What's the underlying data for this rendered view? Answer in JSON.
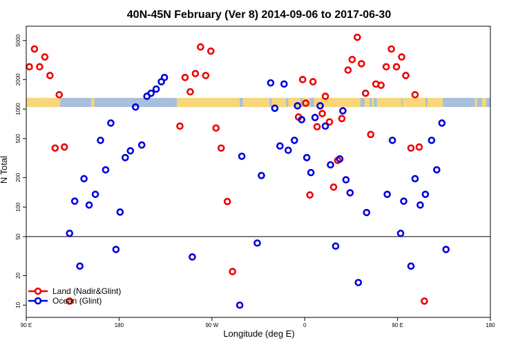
{
  "chart_data": {
    "type": "scatter",
    "title": "40N-45N February (Ver 8)   2014-09-06 to 2017-06-30",
    "xlabel": "Longitude (deg E)",
    "ylabel": "N Total",
    "x_ticks": [
      "90 E",
      "180",
      "90 W",
      "0",
      "90 E",
      "180"
    ],
    "x_tick_values": [
      90,
      180,
      270,
      360,
      450,
      540
    ],
    "xlim": [
      90,
      540
    ],
    "y_scale": "log",
    "ylim": [
      7.5,
      7000
    ],
    "y_ticks": [
      "10",
      "20",
      "50",
      "100",
      "200",
      "500",
      "1000",
      "2000",
      "5000"
    ],
    "y_tick_values": [
      10,
      20,
      50,
      100,
      200,
      500,
      1000,
      2000,
      5000
    ],
    "reference_line": 50,
    "grid": false,
    "legend_position": "bottom-left",
    "land_ocean_strip": {
      "y_range": [
        1050,
        1300
      ],
      "land_color": "#f7d77a",
      "ocean_color": "#a8c0dc",
      "land_segments": [
        [
          90,
          123
        ],
        [
          105,
          107
        ],
        [
          153,
          156
        ],
        [
          236,
          297
        ],
        [
          300,
          326
        ],
        [
          328,
          332
        ],
        [
          332,
          342
        ],
        [
          344,
          356
        ],
        [
          358,
          365
        ],
        [
          369,
          414
        ],
        [
          418,
          423
        ],
        [
          425,
          427
        ],
        [
          430,
          454
        ],
        [
          455,
          477
        ],
        [
          479,
          494
        ],
        [
          525,
          527
        ],
        [
          532,
          536
        ]
      ]
    },
    "series": [
      {
        "name": "Land (Nadir&Glint)",
        "color": "#ee0000",
        "points": [
          [
            93,
            2700
          ],
          [
            98,
            4100
          ],
          [
            103,
            2700
          ],
          [
            108,
            3400
          ],
          [
            113,
            2200
          ],
          [
            118,
            400
          ],
          [
            122,
            1400
          ],
          [
            127,
            410
          ],
          [
            132,
            11
          ],
          [
            239,
            670
          ],
          [
            244,
            2100
          ],
          [
            249,
            1500
          ],
          [
            254,
            2300
          ],
          [
            259,
            4300
          ],
          [
            264,
            2200
          ],
          [
            269,
            3900
          ],
          [
            274,
            640
          ],
          [
            279,
            400
          ],
          [
            285,
            114
          ],
          [
            290,
            22
          ],
          [
            354,
            830
          ],
          [
            358,
            2000
          ],
          [
            361,
            1150
          ],
          [
            365,
            133
          ],
          [
            368,
            1900
          ],
          [
            372,
            660
          ],
          [
            377,
            900
          ],
          [
            380,
            1350
          ],
          [
            384,
            740
          ],
          [
            388,
            160
          ],
          [
            392,
            300
          ],
          [
            396,
            800
          ],
          [
            402,
            2500
          ],
          [
            406,
            3200
          ],
          [
            411,
            5400
          ],
          [
            415,
            2900
          ],
          [
            419,
            1450
          ],
          [
            424,
            550
          ],
          [
            429,
            1800
          ],
          [
            434,
            1750
          ],
          [
            439,
            2700
          ],
          [
            444,
            4100
          ],
          [
            449,
            2700
          ],
          [
            454,
            3400
          ],
          [
            458,
            2200
          ],
          [
            463,
            400
          ],
          [
            467,
            1400
          ],
          [
            471,
            410
          ],
          [
            476,
            11
          ]
        ]
      },
      {
        "name": "Ocean (Glint)",
        "color": "#0000dd",
        "points": [
          [
            132,
            54
          ],
          [
            137,
            115
          ],
          [
            142,
            25
          ],
          [
            146,
            195
          ],
          [
            151,
            105
          ],
          [
            157,
            135
          ],
          [
            162,
            480
          ],
          [
            167,
            240
          ],
          [
            172,
            720
          ],
          [
            177,
            37
          ],
          [
            181,
            89
          ],
          [
            186,
            320
          ],
          [
            191,
            375
          ],
          [
            196,
            1050
          ],
          [
            202,
            430
          ],
          [
            207,
            1350
          ],
          [
            211,
            1450
          ],
          [
            216,
            1600
          ],
          [
            221,
            1900
          ],
          [
            224,
            2100
          ],
          [
            251,
            31
          ],
          [
            297,
            10
          ],
          [
            299,
            330
          ],
          [
            314,
            43
          ],
          [
            318,
            210
          ],
          [
            327,
            1850
          ],
          [
            331,
            1020
          ],
          [
            336,
            420
          ],
          [
            340,
            1800
          ],
          [
            344,
            380
          ],
          [
            350,
            480
          ],
          [
            353,
            1080
          ],
          [
            357,
            780
          ],
          [
            362,
            320
          ],
          [
            366,
            225
          ],
          [
            370,
            820
          ],
          [
            375,
            1080
          ],
          [
            380,
            670
          ],
          [
            385,
            270
          ],
          [
            390,
            40
          ],
          [
            394,
            310
          ],
          [
            397,
            960
          ],
          [
            400,
            190
          ],
          [
            404,
            140
          ],
          [
            412,
            17
          ],
          [
            420,
            88
          ],
          [
            440,
            135
          ],
          [
            445,
            480
          ],
          [
            453,
            54
          ],
          [
            456,
            115
          ],
          [
            463,
            25
          ],
          [
            467,
            195
          ],
          [
            472,
            105
          ],
          [
            477,
            135
          ],
          [
            483,
            480
          ],
          [
            488,
            240
          ],
          [
            493,
            720
          ],
          [
            497,
            37
          ]
        ]
      }
    ]
  }
}
